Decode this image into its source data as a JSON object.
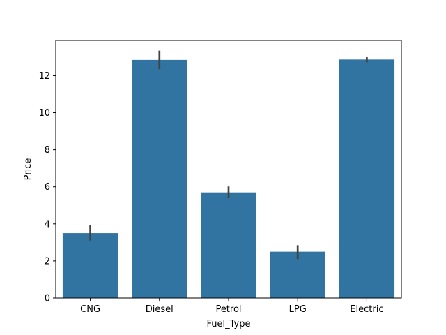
{
  "chart_data": {
    "type": "bar",
    "title": "",
    "xlabel": "Fuel_Type",
    "ylabel": "Price",
    "categories": [
      "CNG",
      "Diesel",
      "Petrol",
      "LPG",
      "Electric"
    ],
    "values": [
      3.5,
      12.85,
      5.7,
      2.5,
      12.87
    ],
    "error_low": [
      3.1,
      12.35,
      5.4,
      2.1,
      12.72
    ],
    "error_high": [
      3.92,
      13.35,
      6.02,
      2.85,
      13.02
    ],
    "ylim": [
      0,
      13.9
    ],
    "yticks": [
      0,
      2,
      4,
      6,
      8,
      10,
      12
    ],
    "grid": false,
    "bar_color": "#3274a1",
    "errorbar_color": "#424242"
  }
}
